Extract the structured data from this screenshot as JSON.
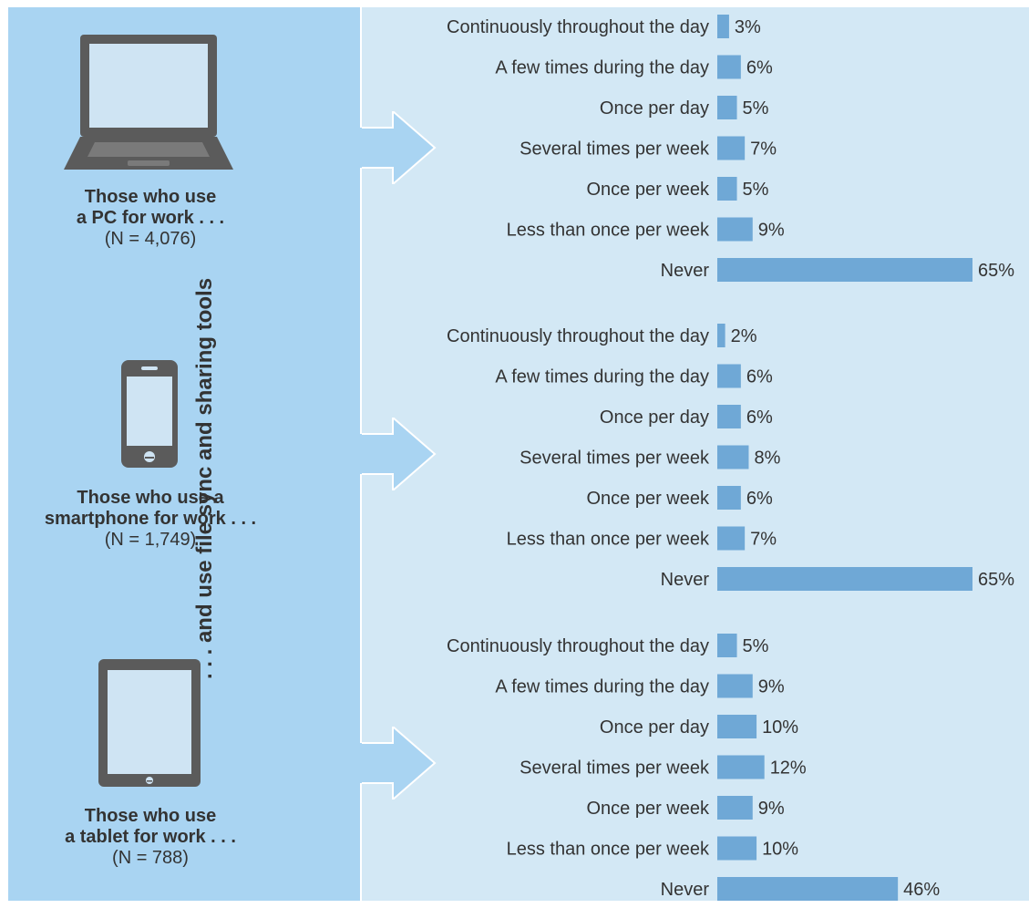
{
  "caption": ". . . and use file sync and sharing tools",
  "colors": {
    "bar": "#6fa8d6",
    "left_panel": "#a9d4f2",
    "right_panel": "#d3e8f5",
    "device": "#5b5b5b",
    "screen": "#cfe4f3"
  },
  "groups": [
    {
      "device_icon": "laptop-icon",
      "label_line1": "Those who use",
      "label_line2": "a PC for work . . .",
      "n_label": "(N = 4,076)"
    },
    {
      "device_icon": "smartphone-icon",
      "label_line1": "Those who use a",
      "label_line2": "smartphone for work . . .",
      "n_label": "(N = 1,749)"
    },
    {
      "device_icon": "tablet-icon",
      "label_line1": "Those who use",
      "label_line2": "a tablet for work . . .",
      "n_label": "(N = 788)"
    }
  ],
  "chart_data": [
    {
      "type": "bar",
      "orientation": "horizontal",
      "categories": [
        "Continuously throughout the day",
        "A few times during the day",
        "Once per day",
        "Several times per week",
        "Once per week",
        "Less than once per week",
        "Never"
      ],
      "values": [
        3,
        6,
        5,
        7,
        5,
        9,
        65
      ],
      "value_labels": [
        "3%",
        "6%",
        "5%",
        "7%",
        "5%",
        "9%",
        "65%"
      ]
    },
    {
      "type": "bar",
      "orientation": "horizontal",
      "categories": [
        "Continuously throughout the day",
        "A few times during the day",
        "Once per day",
        "Several times per week",
        "Once per week",
        "Less than once per week",
        "Never"
      ],
      "values": [
        2,
        6,
        6,
        8,
        6,
        7,
        65
      ],
      "value_labels": [
        "2%",
        "6%",
        "6%",
        "8%",
        "6%",
        "7%",
        "65%"
      ]
    },
    {
      "type": "bar",
      "orientation": "horizontal",
      "categories": [
        "Continuously throughout the day",
        "A few times during the day",
        "Once per day",
        "Several times per week",
        "Once per week",
        "Less than once per week",
        "Never"
      ],
      "values": [
        5,
        9,
        10,
        12,
        9,
        10,
        46
      ],
      "value_labels": [
        "5%",
        "9%",
        "10%",
        "12%",
        "9%",
        "10%",
        "46%"
      ]
    }
  ]
}
